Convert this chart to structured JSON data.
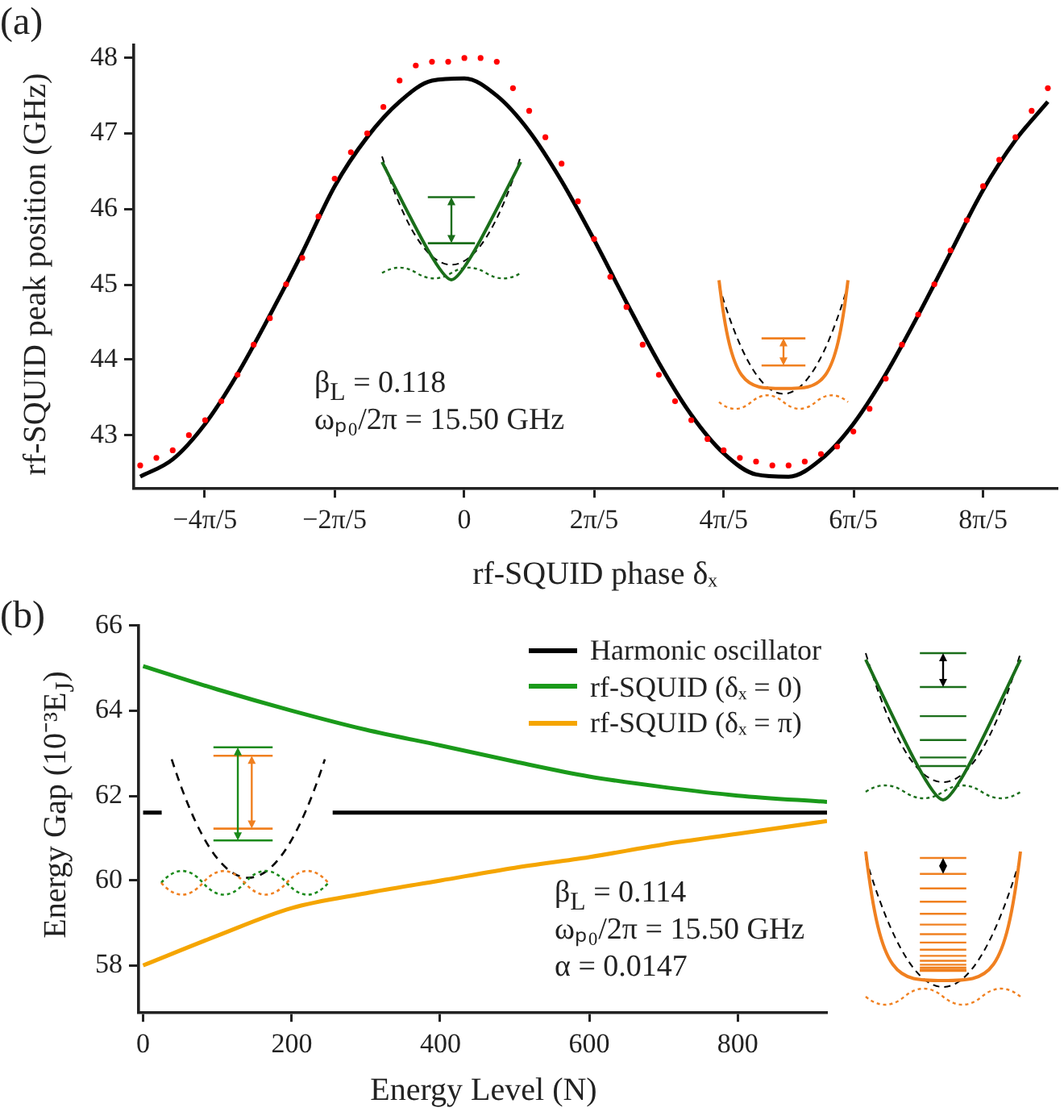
{
  "chart_data": [
    {
      "type": "scatter",
      "xlabel": "rf-SQUID phase δₓ",
      "ylabel": "rf-SQUID peak position (GHz)",
      "annotations": [
        "(a)",
        "β$_{L}$ = 0.118",
        "ωₚ₀/2π = 15.50 GHz"
      ],
      "xlim": [
        -3.204,
        5.749
      ],
      "xticks": [
        {
          "value": -2.513,
          "label": "−4π/5"
        },
        {
          "value": -1.257,
          "label": "−2π/5"
        },
        {
          "value": 0,
          "label": "0"
        },
        {
          "value": 1.257,
          "label": "2π/5"
        },
        {
          "value": 2.513,
          "label": "4π/5"
        },
        {
          "value": 3.77,
          "label": "6π/5"
        },
        {
          "value": 5.027,
          "label": "8π/5"
        }
      ],
      "ylim": [
        42.3,
        48.17
      ],
      "yticks": [
        43,
        44,
        45,
        46,
        47,
        48
      ],
      "grid": false,
      "legend": false,
      "series": [
        {
          "marker": "circle",
          "color": "#ff0000",
          "x": [
            -3.142,
            -2.985,
            -2.827,
            -2.67,
            -2.513,
            -2.356,
            -2.199,
            -2.042,
            -1.885,
            -1.728,
            -1.571,
            -1.414,
            -1.257,
            -1.1,
            -0.942,
            -0.785,
            -0.628,
            -0.471,
            -0.314,
            -0.157,
            0,
            0.157,
            0.314,
            0.471,
            0.628,
            0.785,
            0.942,
            1.1,
            1.257,
            1.414,
            1.571,
            1.728,
            1.885,
            2.042,
            2.199,
            2.356,
            2.513,
            2.67,
            2.827,
            2.985,
            3.142,
            3.299,
            3.456,
            3.613,
            3.77,
            3.927,
            4.084,
            4.241,
            4.398,
            4.555,
            4.712,
            4.869,
            5.027,
            5.184,
            5.341,
            5.498,
            5.655
          ],
          "values": [
            42.6,
            42.7,
            42.8,
            43.0,
            43.2,
            43.45,
            43.8,
            44.2,
            44.55,
            45.0,
            45.35,
            45.9,
            46.4,
            46.75,
            47.0,
            47.35,
            47.7,
            47.9,
            47.95,
            47.95,
            48.0,
            48.0,
            47.95,
            47.6,
            47.3,
            46.95,
            46.6,
            46.1,
            45.6,
            45.1,
            44.7,
            44.2,
            43.8,
            43.45,
            43.2,
            42.95,
            42.8,
            42.7,
            42.65,
            42.6,
            42.6,
            42.65,
            42.75,
            42.85,
            43.05,
            43.35,
            43.75,
            44.2,
            44.6,
            45.0,
            45.45,
            45.85,
            46.3,
            46.65,
            46.95,
            47.3,
            47.6
          ]
        },
        {
          "type": "line",
          "marker": "none",
          "color": "#000000",
          "x": [
            -3.142,
            -2.827,
            -2.513,
            -2.199,
            -1.885,
            -1.571,
            -1.257,
            -0.942,
            -0.628,
            -0.314,
            0,
            0.314,
            0.628,
            0.942,
            1.257,
            1.571,
            1.885,
            2.199,
            2.513,
            2.827,
            3.142,
            3.456,
            3.77,
            4.084,
            4.398,
            4.712,
            5.027,
            5.341,
            5.655
          ],
          "values": [
            42.45,
            42.68,
            43.15,
            43.81,
            44.59,
            45.42,
            46.3,
            46.95,
            47.42,
            47.7,
            47.73,
            47.5,
            47.03,
            46.37,
            45.59,
            44.76,
            43.96,
            43.27,
            42.76,
            42.48,
            42.45,
            42.68,
            43.15,
            43.81,
            44.59,
            45.42,
            46.25,
            46.91,
            47.42
          ]
        }
      ]
    },
    {
      "type": "line",
      "xlabel": "Energy Level (N)",
      "ylabel": "Energy Gap (10⁻³E$_{J}$)",
      "annotations": [
        "(b)",
        "β$_{L}$ = 0.114",
        "ωₚ₀/2π = 15.50 GHz",
        "α = 0.0147"
      ],
      "xlim": [
        -6,
        920
      ],
      "xticks": [
        0,
        200,
        400,
        600,
        800
      ],
      "ylim": [
        56.9,
        66
      ],
      "yticks": [
        58,
        60,
        62,
        64,
        66
      ],
      "grid": false,
      "legend": "top right",
      "series": [
        {
          "name": "Harmonic oscillator",
          "color": "#000000",
          "x": [
            0,
            25,
            140,
            255,
            920
          ],
          "values": [
            61.6,
            61.6,
            null,
            61.6,
            61.6
          ]
        },
        {
          "name": "rf-SQUID (δₓ = 0)",
          "color": "#1a9a1a",
          "x": [
            0,
            100,
            200,
            300,
            400,
            500,
            600,
            700,
            800,
            920
          ],
          "values": [
            65.05,
            64.5,
            64.0,
            63.55,
            63.18,
            62.8,
            62.45,
            62.2,
            62.0,
            61.85
          ]
        },
        {
          "name": "rf-SQUID (δₓ = π)",
          "color": "#f5a500",
          "x": [
            0,
            100,
            200,
            300,
            400,
            500,
            600,
            700,
            800,
            920
          ],
          "values": [
            58.0,
            58.7,
            59.35,
            59.7,
            60.0,
            60.3,
            60.55,
            60.85,
            61.1,
            61.4
          ]
        }
      ]
    }
  ]
}
